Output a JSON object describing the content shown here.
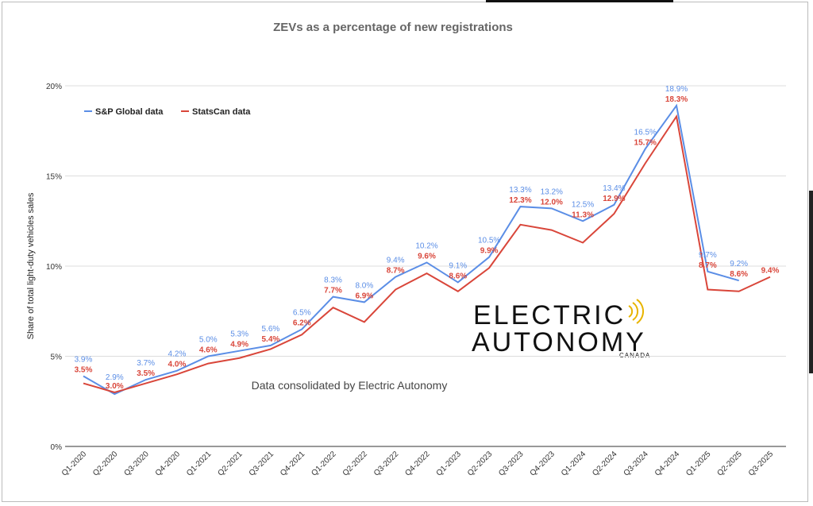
{
  "chart_data": {
    "type": "line",
    "title": "ZEVs as a percentage of new registrations",
    "xlabel": "",
    "ylabel": "Share of total light-duty vehicles sales",
    "ylim": [
      0,
      20
    ],
    "yticks": [
      0,
      5,
      10,
      15,
      20
    ],
    "ytick_labels": [
      "0%",
      "5%",
      "10%",
      "15%",
      "20%"
    ],
    "grid": true,
    "legend_position": "top-left",
    "annotation": "Data consolidated by Electric Autonomy",
    "watermark": "ELECTRIC AUTONOMY CANADA",
    "categories": [
      "Q1-2020",
      "Q2-2020",
      "Q3-2020",
      "Q4-2020",
      "Q1-2021",
      "Q2-2021",
      "Q3-2021",
      "Q4-2021",
      "Q1-2022",
      "Q2-2022",
      "Q3-2022",
      "Q4-2022",
      "Q1-2023",
      "Q2-2023",
      "Q3-2023",
      "Q4-2023",
      "Q1-2024",
      "Q2-2024",
      "Q3-2024",
      "Q4-2024",
      "Q1-2025",
      "Q2-2025",
      "Q3-2025"
    ],
    "series": [
      {
        "name": "S&P Global data",
        "color": "#5b8ee6",
        "values": [
          3.9,
          2.9,
          3.7,
          4.2,
          5.0,
          5.3,
          5.6,
          6.5,
          8.3,
          8.0,
          9.4,
          10.2,
          9.1,
          10.5,
          13.3,
          13.2,
          12.5,
          13.4,
          16.5,
          18.9,
          9.7,
          9.2,
          null
        ]
      },
      {
        "name": "StatsCan data",
        "color": "#d9463a",
        "values": [
          3.5,
          3.0,
          3.5,
          4.0,
          4.6,
          4.9,
          5.4,
          6.2,
          7.7,
          6.9,
          8.7,
          9.6,
          8.6,
          9.9,
          12.3,
          12.0,
          11.3,
          12.9,
          15.7,
          18.3,
          8.7,
          8.6,
          9.4
        ]
      }
    ]
  }
}
